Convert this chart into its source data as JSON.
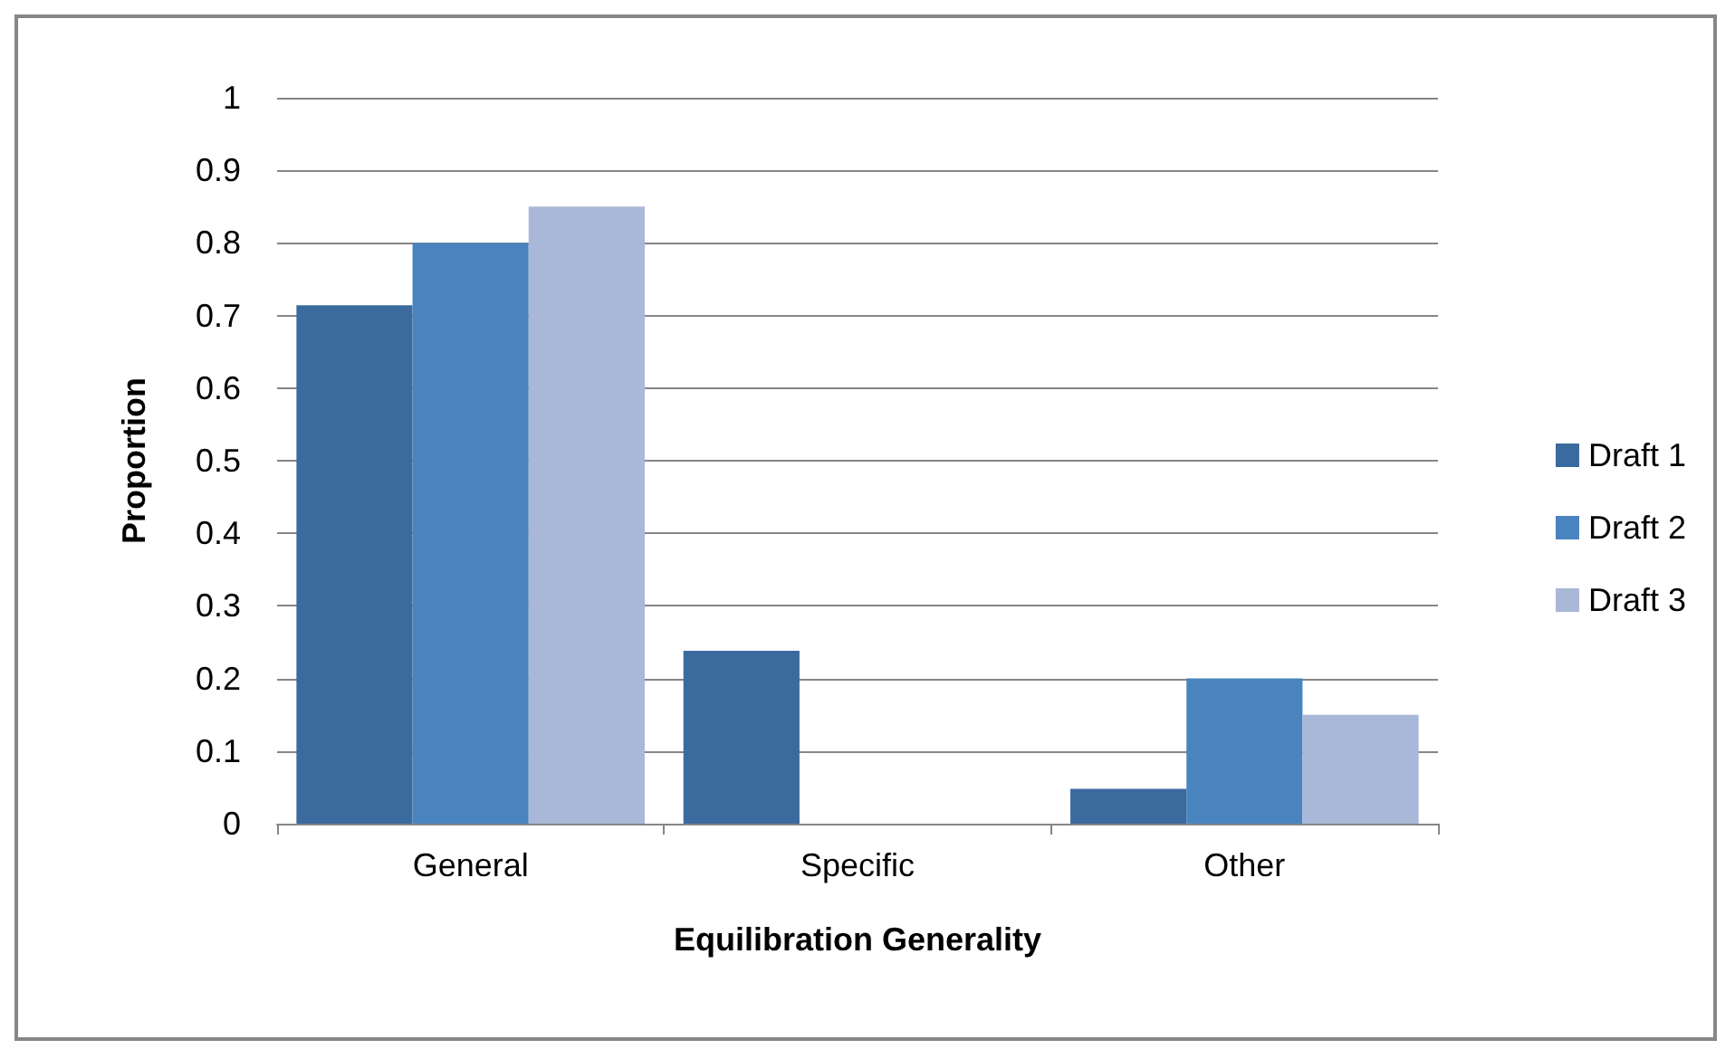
{
  "chart_data": {
    "type": "bar",
    "xlabel": "Equilibration Generality",
    "ylabel": "Proportion",
    "categories": [
      "General",
      "Specific",
      "Other"
    ],
    "series": [
      {
        "name": "Draft 1",
        "color": "#3b6a9e",
        "values": [
          0.714,
          0.238,
          0.048
        ]
      },
      {
        "name": "Draft 2",
        "color": "#4a84be",
        "values": [
          0.8,
          0,
          0.2
        ]
      },
      {
        "name": "Draft 3",
        "color": "#a9b8d8",
        "values": [
          0.85,
          0,
          0.15
        ]
      }
    ],
    "ylim": [
      0,
      1
    ],
    "yticks": [
      0,
      0.1,
      0.2,
      0.3,
      0.4,
      0.5,
      0.6,
      0.7,
      0.8,
      0.9,
      1
    ],
    "grid": "y",
    "legend": "right"
  }
}
